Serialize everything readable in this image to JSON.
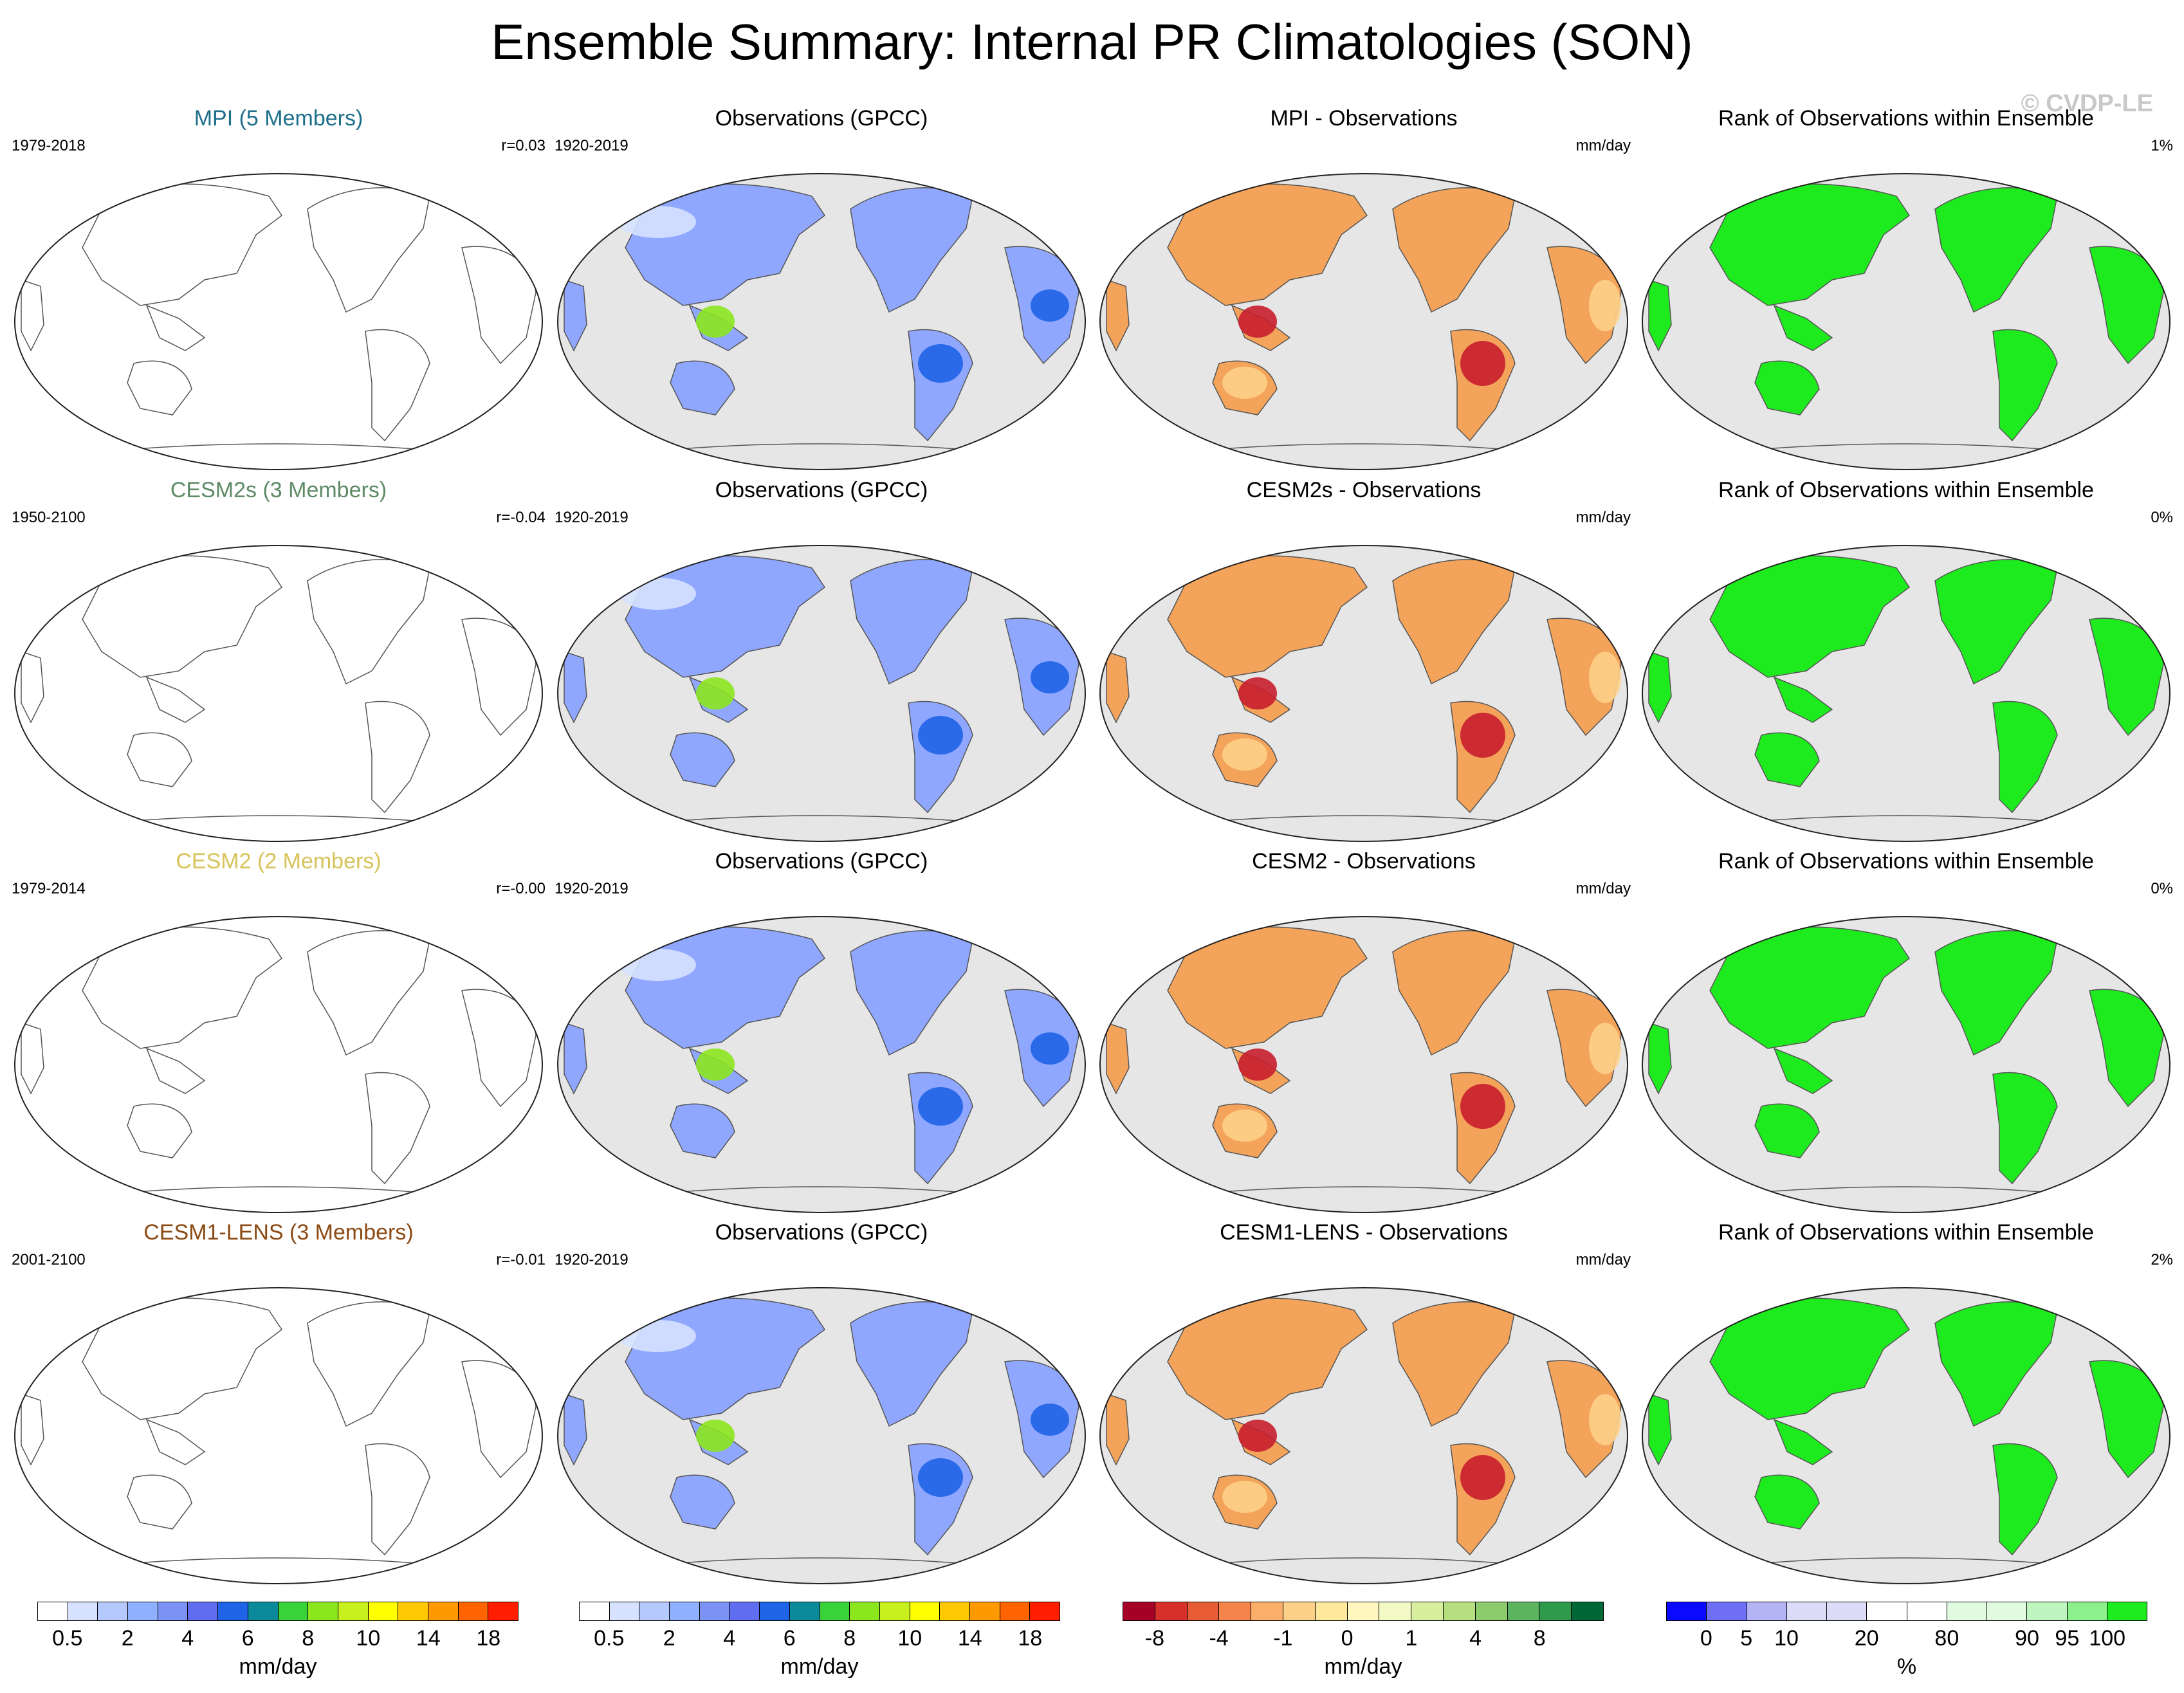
{
  "title": "Ensemble Summary: Internal PR Climatologies (SON)",
  "copyright": "© CVDP-LE",
  "rows": [
    {
      "model": {
        "title": "MPI (5 Members)",
        "years": "1979-2018",
        "stat": "r=0.03",
        "color": "#1f6f8b"
      },
      "obs": {
        "title": "Observations (GPCC)",
        "years": "1920-2019"
      },
      "diff": {
        "title": "MPI - Observations",
        "units": "mm/day"
      },
      "rank": {
        "title": "Rank of Observations within Ensemble",
        "pct": "1%"
      }
    },
    {
      "model": {
        "title": "CESM2s (3 Members)",
        "years": "1950-2100",
        "stat": "r=-0.04",
        "color": "#5e8a66"
      },
      "obs": {
        "title": "Observations (GPCC)",
        "years": "1920-2019"
      },
      "diff": {
        "title": "CESM2s - Observations",
        "units": "mm/day"
      },
      "rank": {
        "title": "Rank of Observations within Ensemble",
        "pct": "0%"
      }
    },
    {
      "model": {
        "title": "CESM2 (2 Members)",
        "years": "1979-2014",
        "stat": "r=-0.00",
        "color": "#d8c35a"
      },
      "obs": {
        "title": "Observations (GPCC)",
        "years": "1920-2019"
      },
      "diff": {
        "title": "CESM2 - Observations",
        "units": "mm/day"
      },
      "rank": {
        "title": "Rank of Observations within Ensemble",
        "pct": "0%"
      }
    },
    {
      "model": {
        "title": "CESM1-LENS (3 Members)",
        "years": "2001-2100",
        "stat": "r=-0.01",
        "color": "#8b4a14"
      },
      "obs": {
        "title": "Observations (GPCC)",
        "years": "1920-2019"
      },
      "diff": {
        "title": "CESM1-LENS - Observations",
        "units": "mm/day"
      },
      "rank": {
        "title": "Rank of Observations within Ensemble",
        "pct": "2%"
      }
    }
  ],
  "colorbars": [
    {
      "units": "mm/day",
      "colors": [
        "#ffffff",
        "#d6e2ff",
        "#b5c9ff",
        "#8fb0ff",
        "#7d92f5",
        "#5f6ef0",
        "#1f64e6",
        "#0a8a9a",
        "#39d339",
        "#8ce61e",
        "#c8f01e",
        "#ffff00",
        "#ffc800",
        "#ff9900",
        "#ff6400",
        "#ff1e00"
      ],
      "ticks": [
        "0.5",
        "2",
        "4",
        "6",
        "8",
        "10",
        "14",
        "18"
      ]
    },
    {
      "units": "mm/day",
      "colors": [
        "#ffffff",
        "#d6e2ff",
        "#b5c9ff",
        "#8fb0ff",
        "#7d92f5",
        "#5f6ef0",
        "#1f64e6",
        "#0a8a9a",
        "#39d339",
        "#8ce61e",
        "#c8f01e",
        "#ffff00",
        "#ffc800",
        "#ff9900",
        "#ff6400",
        "#ff1e00"
      ],
      "ticks": [
        "0.5",
        "2",
        "4",
        "6",
        "8",
        "10",
        "14",
        "18"
      ]
    },
    {
      "units": "mm/day",
      "colors": [
        "#a50026",
        "#d7302b",
        "#e85c35",
        "#f4844a",
        "#fbad6a",
        "#fdd08a",
        "#fee89c",
        "#fff6c0",
        "#f2f9c4",
        "#d9efa0",
        "#b6df80",
        "#8ccc6c",
        "#5cb55e",
        "#2f9a4c",
        "#006837"
      ],
      "ticks": [
        "-8",
        "-4",
        "-1",
        "0",
        "1",
        "4",
        "8"
      ]
    },
    {
      "units": "%",
      "colors": [
        "#0a0aff",
        "#6f6ff5",
        "#b4b4f5",
        "#dcdcf8",
        "#dcdcf8",
        "#ffffff",
        "#ffffff",
        "#e0fbe0",
        "#e0fbe0",
        "#bff6bf",
        "#8cf08c",
        "#1eeb1e"
      ],
      "ticks": [
        "0",
        "5",
        "10",
        "20",
        "80",
        "90",
        "95",
        "100"
      ]
    }
  ],
  "map_colors": {
    "ocean_gray": "#e6e6e6",
    "coast": "#555555",
    "obs_land": "#8fa7ff",
    "obs_wet": "#1f64e6",
    "obs_tropic": "#8ce61e",
    "diff_land": "#f4a35a",
    "diff_dry": "#fdd08a",
    "diff_strong": "#c81e2d",
    "rank_land": "#1eeb1e"
  }
}
